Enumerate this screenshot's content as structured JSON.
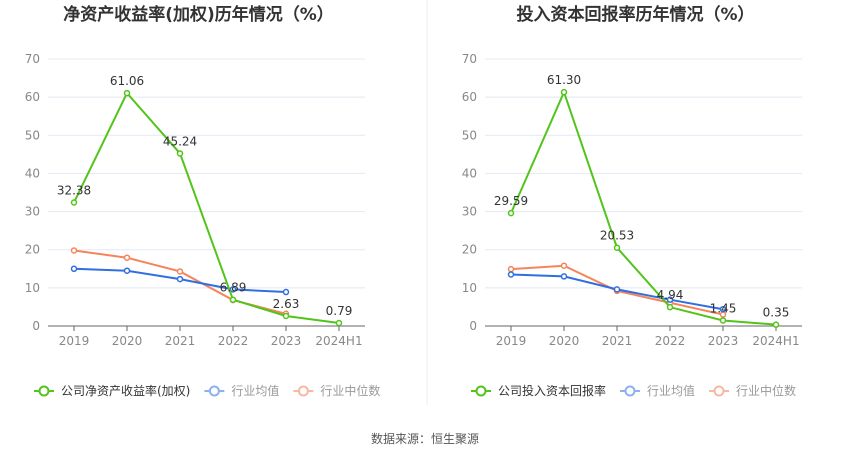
{
  "source": "数据来源：恒生聚源",
  "colors": {
    "company": "#52c41a",
    "avg": "#2f6fdf",
    "median": "#f5845a",
    "avg_legend": "#8fb0ef",
    "median_legend": "#f7b9a2"
  },
  "chart_data": [
    {
      "type": "line",
      "title": "净资产收益率(加权)历年情况（%）",
      "categories": [
        "2019",
        "2020",
        "2021",
        "2022",
        "2023",
        "2024H1"
      ],
      "ylim": [
        0,
        70
      ],
      "yticks": [
        0,
        10,
        20,
        30,
        40,
        50,
        60,
        70
      ],
      "grid": true,
      "legend": "bottom",
      "series": [
        {
          "name": "公司净资产收益率(加权)",
          "values": [
            32.38,
            61.06,
            45.24,
            6.89,
            2.63,
            0.79
          ],
          "labels": true
        },
        {
          "name": "行业均值",
          "values": [
            15.0,
            14.5,
            12.3,
            9.6,
            8.9,
            null
          ]
        },
        {
          "name": "行业中位数",
          "values": [
            19.8,
            17.9,
            14.3,
            6.8,
            3.2,
            null
          ]
        }
      ]
    },
    {
      "type": "line",
      "title": "投入资本回报率历年情况（%）",
      "categories": [
        "2019",
        "2020",
        "2021",
        "2022",
        "2023",
        "2024H1"
      ],
      "ylim": [
        0,
        70
      ],
      "yticks": [
        0,
        10,
        20,
        30,
        40,
        50,
        60,
        70
      ],
      "grid": true,
      "legend": "bottom",
      "series": [
        {
          "name": "公司投入资本回报率",
          "values": [
            29.59,
            61.3,
            20.53,
            4.94,
            1.45,
            0.35
          ],
          "labels": true
        },
        {
          "name": "行业均值",
          "values": [
            13.5,
            13.0,
            9.6,
            6.9,
            4.4,
            null
          ]
        },
        {
          "name": "行业中位数",
          "values": [
            14.9,
            15.8,
            9.2,
            6.1,
            3.0,
            null
          ]
        }
      ]
    }
  ]
}
